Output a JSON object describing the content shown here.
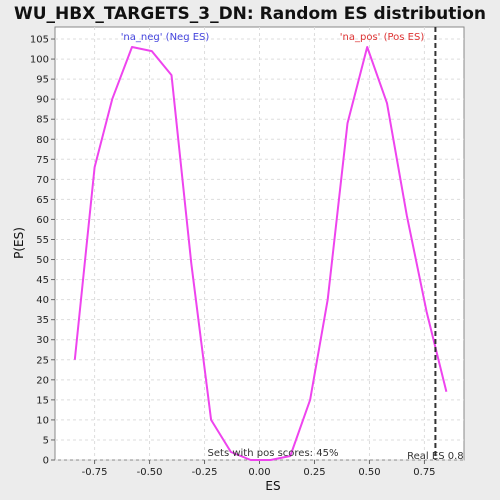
{
  "chart_data": {
    "type": "line",
    "title": "WU_HBX_TARGETS_3_DN: Random ES distribution",
    "xlabel": "ES",
    "ylabel": "P(ES)",
    "xlim": [
      -0.93,
      0.93
    ],
    "ylim": [
      0,
      108
    ],
    "xticks": [
      -0.75,
      -0.5,
      -0.25,
      0.0,
      0.25,
      0.5,
      0.75
    ],
    "xtick_labels": [
      "-0.75",
      "-0.50",
      "-0.25",
      "0.00",
      "0.25",
      "0.50",
      "0.75"
    ],
    "yticks": [
      0,
      5,
      10,
      15,
      20,
      25,
      30,
      35,
      40,
      45,
      50,
      55,
      60,
      65,
      70,
      75,
      80,
      85,
      90,
      95,
      100,
      105
    ],
    "grid": true,
    "series": [
      {
        "color": "#ee44ee",
        "x": [
          -0.84,
          -0.75,
          -0.67,
          -0.58,
          -0.49,
          -0.4,
          -0.31,
          -0.22,
          -0.13,
          -0.04,
          0.05,
          0.14,
          0.23,
          0.31,
          0.4,
          0.49,
          0.58,
          0.67,
          0.76,
          0.85
        ],
        "y": [
          25,
          73,
          90,
          103,
          102,
          96,
          49,
          10,
          2,
          0,
          0,
          1,
          15,
          40,
          84,
          103,
          89,
          61,
          37,
          17
        ]
      }
    ],
    "real_es": {
      "x": 0.8,
      "label": "Real ES 0.8",
      "color": "#333333"
    },
    "annotations": {
      "neg": {
        "text": "'na_neg' (Neg ES)",
        "color": "#4444dd"
      },
      "pos": {
        "text": "'na_pos' (Pos ES)",
        "color": "#dd3333"
      },
      "pos_scores": {
        "text": "Sets with pos scores: 45%",
        "color": "#333333"
      }
    }
  }
}
